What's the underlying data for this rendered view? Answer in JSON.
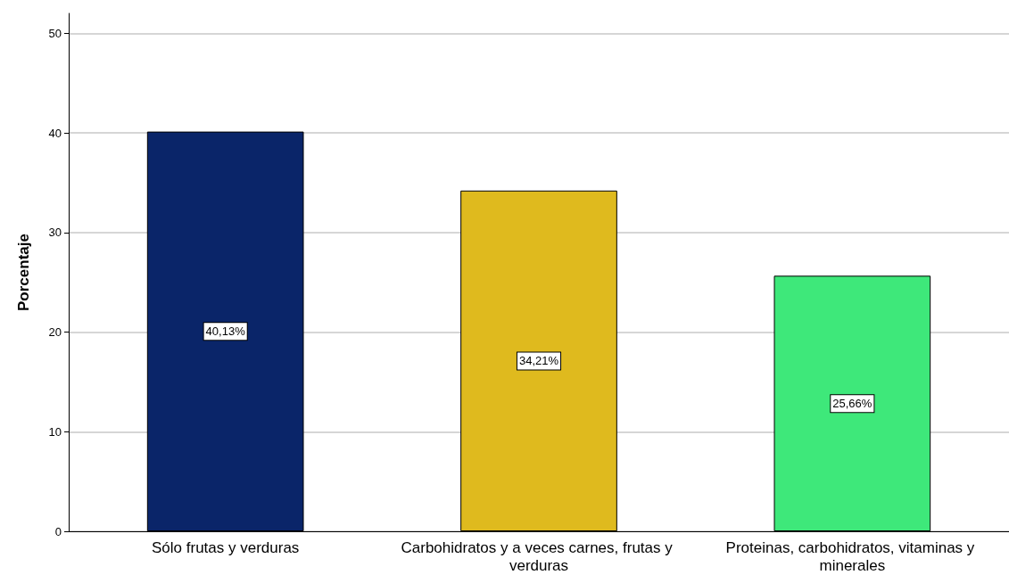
{
  "chart_data": {
    "type": "bar",
    "ylabel": "Porcentaje",
    "categories": [
      "Sólo frutas y verduras",
      "Carbohidratos y a veces carnes, frutas y verduras",
      "Proteinas, carbohidratos, vitaminas y minerales"
    ],
    "values": [
      40.13,
      34.21,
      25.66
    ],
    "colors": [
      "#0a2569",
      "#dfba1e",
      "#3ee87a"
    ],
    "value_labels": [
      "40,13%",
      "34,21%",
      "25,66%"
    ],
    "ylim": [
      0,
      52
    ],
    "yticks": [
      0,
      10,
      20,
      30,
      40,
      50
    ],
    "grid": "y"
  }
}
